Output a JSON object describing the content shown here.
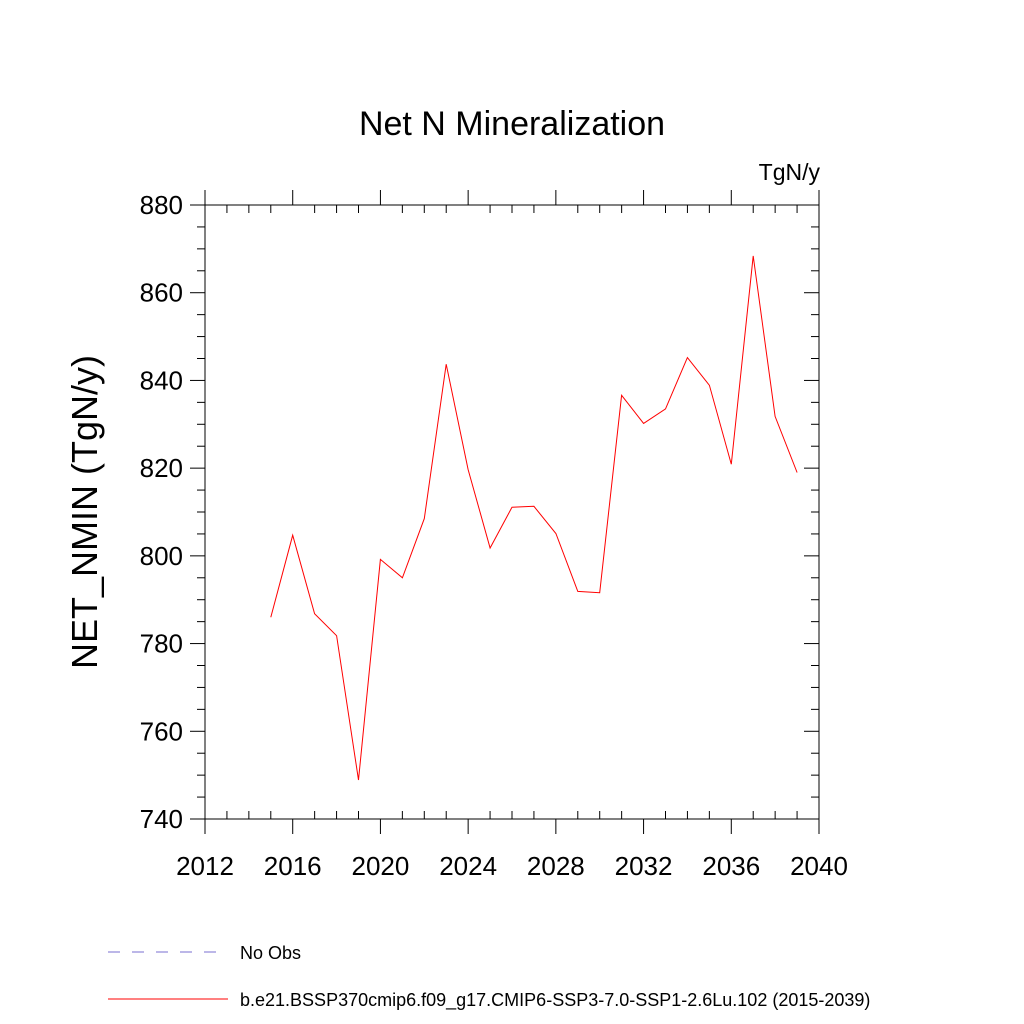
{
  "chart_data": {
    "type": "line",
    "title": "Net N Mineralization",
    "units": "TgN/y",
    "xlabel": "",
    "ylabel": "NET_NMIN  (TgN/y)",
    "xlim": [
      2012,
      2040
    ],
    "ylim": [
      740,
      880
    ],
    "xticks": [
      2012,
      2016,
      2020,
      2024,
      2028,
      2032,
      2036,
      2040
    ],
    "yticks": [
      740,
      760,
      780,
      800,
      820,
      840,
      860,
      880
    ],
    "x_minor_step": 1,
    "y_minor_step": 5,
    "grid": false,
    "legend_position": "bottom-left",
    "series": [
      {
        "name": "No Obs",
        "color": "#7a6fd0",
        "dash": "dashed",
        "x": [],
        "values": []
      },
      {
        "name": "b.e21.BSSP370cmip6.f09_g17.CMIP6-SSP3-7.0-SSP1-2.6Lu.102 (2015-2039)",
        "color": "#ff0000",
        "dash": "solid",
        "x": [
          2015,
          2016,
          2017,
          2018,
          2019,
          2020,
          2021,
          2022,
          2023,
          2024,
          2025,
          2026,
          2027,
          2028,
          2029,
          2030,
          2031,
          2032,
          2033,
          2034,
          2035,
          2036,
          2037,
          2038,
          2039
        ],
        "values": [
          786.0,
          804.7,
          786.8,
          781.8,
          748.9,
          799.2,
          795.0,
          808.5,
          843.7,
          819.7,
          801.8,
          811.1,
          811.3,
          805.1,
          791.9,
          791.6,
          836.6,
          830.2,
          833.5,
          845.2,
          838.9,
          820.9,
          868.4,
          831.8,
          819.0
        ]
      }
    ]
  }
}
